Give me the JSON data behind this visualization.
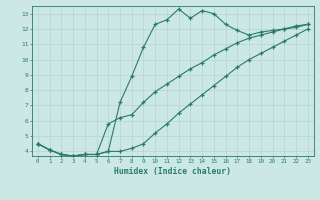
{
  "xlabel": "Humidex (Indice chaleur)",
  "xlim": [
    -0.5,
    23.5
  ],
  "ylim": [
    3.7,
    13.5
  ],
  "xticks": [
    0,
    1,
    2,
    3,
    4,
    5,
    6,
    7,
    8,
    9,
    10,
    11,
    12,
    13,
    14,
    15,
    16,
    17,
    18,
    19,
    20,
    21,
    22,
    23
  ],
  "yticks": [
    4,
    5,
    6,
    7,
    8,
    9,
    10,
    11,
    12,
    13
  ],
  "bg_color": "#cce8e4",
  "line_color": "#2a7a6a",
  "grid_color": "#b8d8d4",
  "line1_x": [
    0,
    1,
    2,
    3,
    4,
    5,
    6,
    7,
    8,
    9,
    10,
    11,
    12,
    13,
    14,
    15,
    16,
    17,
    18,
    19,
    20,
    21,
    22,
    23
  ],
  "line1_y": [
    4.5,
    4.1,
    3.8,
    3.7,
    3.8,
    3.8,
    4.0,
    7.2,
    8.9,
    10.8,
    12.3,
    12.6,
    13.3,
    12.7,
    13.2,
    13.0,
    12.3,
    11.9,
    11.6,
    11.8,
    11.9,
    12.0,
    12.2,
    12.3
  ],
  "line2_x": [
    0,
    1,
    2,
    3,
    4,
    5,
    6,
    7,
    8,
    9,
    10,
    11,
    12,
    13,
    14,
    15,
    16,
    17,
    18,
    19,
    20,
    21,
    22,
    23
  ],
  "line2_y": [
    4.5,
    4.1,
    3.8,
    3.7,
    3.8,
    3.8,
    5.8,
    6.2,
    6.4,
    7.2,
    7.9,
    8.4,
    8.9,
    9.4,
    9.8,
    10.3,
    10.7,
    11.1,
    11.4,
    11.6,
    11.8,
    12.0,
    12.1,
    12.3
  ],
  "line3_x": [
    0,
    1,
    2,
    3,
    4,
    5,
    6,
    7,
    8,
    9,
    10,
    11,
    12,
    13,
    14,
    15,
    16,
    17,
    18,
    19,
    20,
    21,
    22,
    23
  ],
  "line3_y": [
    4.5,
    4.1,
    3.8,
    3.7,
    3.8,
    3.8,
    4.0,
    4.0,
    4.2,
    4.5,
    5.2,
    5.8,
    6.5,
    7.1,
    7.7,
    8.3,
    8.9,
    9.5,
    10.0,
    10.4,
    10.8,
    11.2,
    11.6,
    12.0
  ]
}
